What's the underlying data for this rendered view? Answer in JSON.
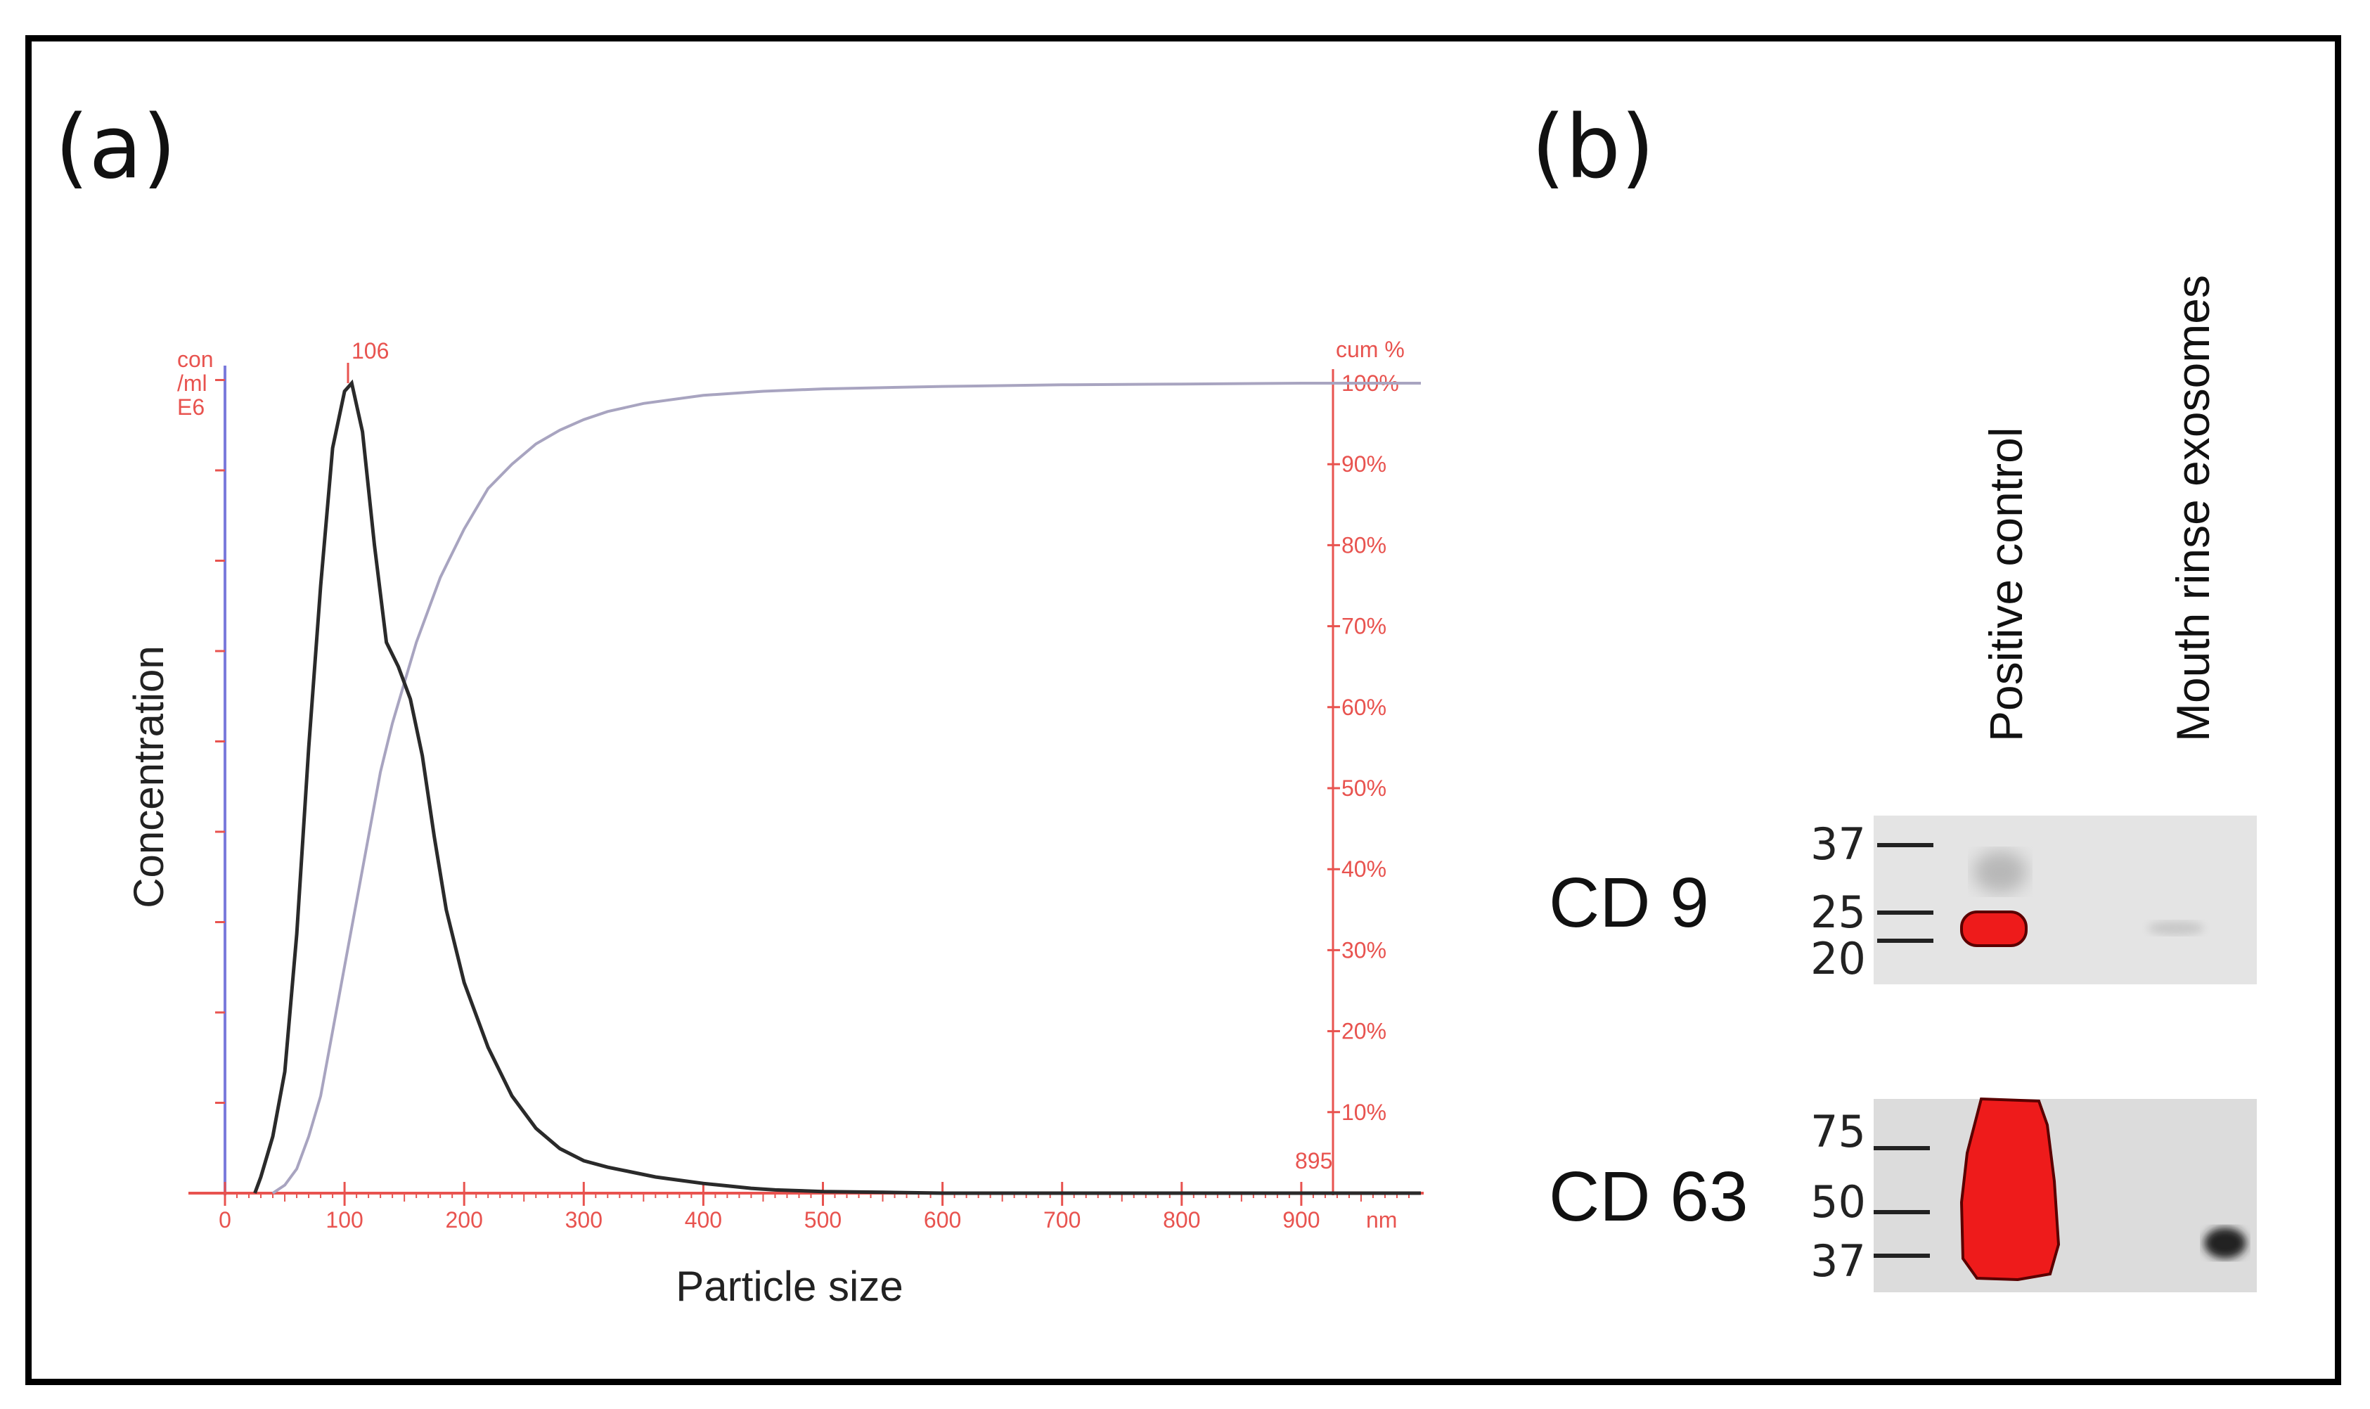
{
  "panels": {
    "a_label": "(a)",
    "b_label": "(b)"
  },
  "chart_data": {
    "type": "line",
    "xlabel": "Particle size",
    "ylabel": "Concentration",
    "x_unit": "nm",
    "left_axis_unit": [
      "con",
      "/ml",
      "E6"
    ],
    "right_axis_title": "cum %",
    "xlim": [
      0,
      1000
    ],
    "x_ticks": [
      0,
      100,
      200,
      300,
      400,
      500,
      600,
      700,
      800,
      900
    ],
    "right_ticks": [
      "10%",
      "20%",
      "30%",
      "40%",
      "50%",
      "60%",
      "70%",
      "80%",
      "90%",
      "100%"
    ],
    "annotations": {
      "peak": "106",
      "max": "895"
    },
    "colors": {
      "axis": "#e8534f",
      "left_axis": "#7b7bdc",
      "distribution": "#2a2a2a",
      "cumulative": "#a8a4c0"
    },
    "series": [
      {
        "role": "distribution",
        "x": [
          25,
          30,
          40,
          50,
          60,
          70,
          80,
          90,
          100,
          106,
          115,
          125,
          135,
          145,
          155,
          165,
          175,
          185,
          200,
          220,
          240,
          260,
          280,
          300,
          320,
          340,
          360,
          380,
          400,
          420,
          440,
          460,
          480,
          500,
          550,
          600,
          700,
          800,
          900,
          1000
        ],
        "y": [
          0,
          0.02,
          0.07,
          0.15,
          0.32,
          0.55,
          0.75,
          0.92,
          0.99,
          1.0,
          0.94,
          0.8,
          0.68,
          0.65,
          0.61,
          0.54,
          0.44,
          0.35,
          0.26,
          0.18,
          0.12,
          0.08,
          0.055,
          0.04,
          0.032,
          0.026,
          0.02,
          0.016,
          0.012,
          0.009,
          0.006,
          0.004,
          0.003,
          0.002,
          0.001,
          0.0,
          0.0,
          0.0,
          0.0,
          0.0
        ]
      },
      {
        "role": "cumulative",
        "x": [
          40,
          50,
          60,
          70,
          80,
          90,
          100,
          110,
          120,
          130,
          140,
          150,
          160,
          170,
          180,
          190,
          200,
          220,
          240,
          260,
          280,
          300,
          320,
          350,
          400,
          450,
          500,
          600,
          700,
          800,
          900,
          1000
        ],
        "y": [
          0,
          1,
          3,
          7,
          12,
          20,
          28,
          36,
          44,
          52,
          58,
          63,
          68,
          72,
          76,
          79,
          82,
          87,
          90,
          92.5,
          94.2,
          95.5,
          96.5,
          97.5,
          98.5,
          99,
          99.3,
          99.6,
          99.8,
          99.9,
          100,
          100
        ]
      }
    ]
  },
  "blot": {
    "lanes": [
      "Positive control",
      "Mouth rinse exosomes"
    ],
    "cd9": {
      "name": "CD 9",
      "markers": [
        "37",
        "25",
        "20"
      ]
    },
    "cd63": {
      "name": "CD 63",
      "markers": [
        "75",
        "50",
        "37"
      ]
    }
  }
}
